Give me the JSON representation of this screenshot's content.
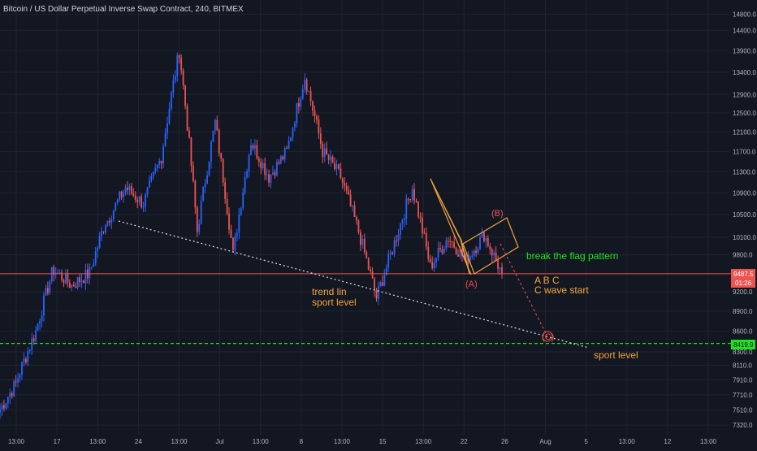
{
  "window": {
    "title": "Bitcoin / US Dollar Perpetual Inverse Swap Contract, 240, BITMEX"
  },
  "colors": {
    "background": "#131722",
    "grid": "#1f2433",
    "up_candle": "#2962ff",
    "down_candle": "#ef5350",
    "current_price_line": "#ef5350",
    "support_line": "#21e021",
    "annotation": "#f2a33a",
    "flag": "#f2a33a"
  },
  "price_axis": {
    "labels": [
      "14800.0",
      "14400.0",
      "13900.0",
      "13400.0",
      "12900.0",
      "12500.0",
      "12100.0",
      "11700.0",
      "11300.0",
      "10900.0",
      "10500.0",
      "10100.0",
      "9800.0",
      "9200.0",
      "8900.0",
      "8600.0",
      "8300.0",
      "8110.0",
      "7910.0",
      "7710.0",
      "7510.0",
      "7320.0"
    ],
    "current_price_badge": "9487.5",
    "countdown_badge": "01:26",
    "support_badge": "8419.9"
  },
  "time_axis": {
    "labels": [
      "13:00",
      "17",
      "13:00",
      "24",
      "13:00",
      "Jul",
      "13:00",
      "8",
      "13:00",
      "15",
      "13:00",
      "22",
      "26",
      "Aug",
      "5",
      "13:00",
      "12",
      "13:00"
    ]
  },
  "annotations": {
    "break_flag": "break the flag pattern",
    "abc": "A B C",
    "c_wave": "C wave start",
    "trend_line_1": "trend lin",
    "trend_line_2": "sport level",
    "support_level": "sport level",
    "wave_a": "(A)",
    "wave_b": "(B)",
    "wave_c": "(C)"
  },
  "chart_data": {
    "type": "candlestick",
    "title": "Bitcoin / US Dollar Perpetual Inverse Swap Contract, 240, BITMEX",
    "y_scale": "log",
    "ylim": [
      7200,
      15000
    ],
    "current_price": 9487.5,
    "support_price": 8419.9,
    "price_path": [
      [
        7520,
        7900
      ],
      [
        7950,
        8600
      ],
      [
        8600,
        9600
      ],
      [
        9550,
        9300
      ],
      [
        9300,
        9500
      ],
      [
        9500,
        10500
      ],
      [
        10400,
        11000
      ],
      [
        11000,
        10700
      ],
      [
        10700,
        11600
      ],
      [
        11600,
        13900
      ],
      [
        13900,
        10200
      ],
      [
        10200,
        12300
      ],
      [
        12300,
        9800
      ],
      [
        9800,
        11900
      ],
      [
        11900,
        11200
      ],
      [
        11200,
        11700
      ],
      [
        11700,
        13300
      ],
      [
        13300,
        11700
      ],
      [
        11700,
        11200
      ],
      [
        11200,
        10200
      ],
      [
        10200,
        9100
      ],
      [
        9100,
        10000
      ],
      [
        10000,
        11000
      ],
      [
        11000,
        9600
      ],
      [
        9600,
        10100
      ],
      [
        10100,
        9700
      ],
      [
        9700,
        10150
      ],
      [
        10150,
        9487.5
      ]
    ],
    "annotations": [
      {
        "text": "(A)",
        "price": 9600
      },
      {
        "text": "(B)",
        "price": 10300
      },
      {
        "text": "(C)",
        "price": 8500
      },
      {
        "text": "break the flag pattern"
      },
      {
        "text": "A B C"
      },
      {
        "text": "C wave start"
      },
      {
        "text": "trend lin"
      },
      {
        "text": "sport level"
      }
    ]
  }
}
